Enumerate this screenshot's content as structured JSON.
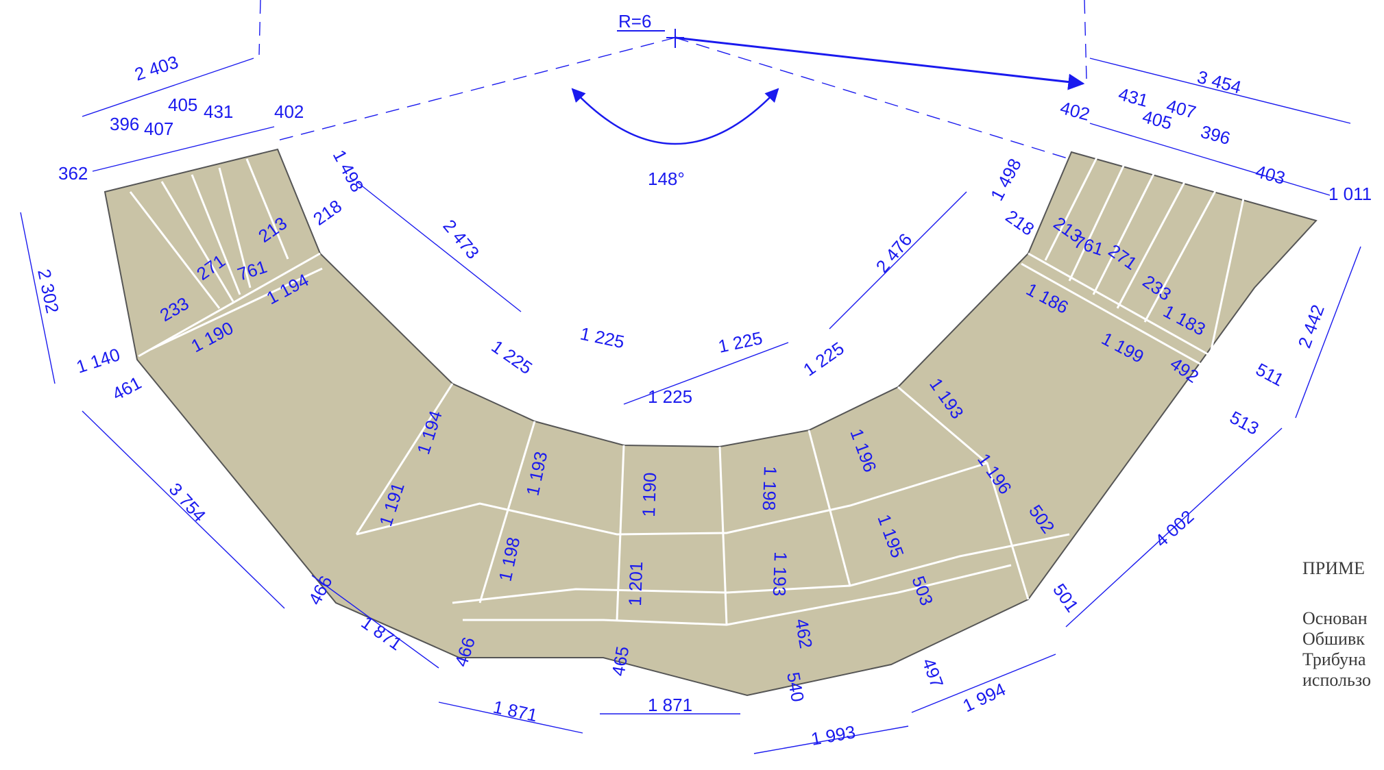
{
  "drawing": {
    "radius_label": "R=6",
    "angle_label": "148°",
    "colors": {
      "dimension": "#1a1aee",
      "panel_fill": "#c9c3a6",
      "panel_outline": "#555555",
      "panel_seam": "#ffffff"
    },
    "dimensions": [
      "2 403",
      "396",
      "407",
      "405",
      "431",
      "402",
      "362",
      "1 498",
      "218",
      "213",
      "761",
      "271",
      "233",
      "1 194",
      "1 190",
      "2 302",
      "1 140",
      "461",
      "2 473",
      "1 225",
      "1 225",
      "1 225",
      "1 225",
      "1 225",
      "2 476",
      "1 498",
      "218",
      "213",
      "761",
      "271",
      "233",
      "1 186",
      "1 183",
      "1 199",
      "492",
      "511",
      "513",
      "2 442",
      "3 454",
      "431",
      "405",
      "407",
      "396",
      "402",
      "403",
      "1 011",
      "3 754",
      "1 194",
      "1 191",
      "1 193",
      "1 198",
      "1 190",
      "1 201",
      "1 198",
      "1 193",
      "1 196",
      "1 195",
      "1 193",
      "1 196",
      "502",
      "503",
      "501",
      "462",
      "497",
      "466",
      "466",
      "465",
      "540",
      "1 871",
      "1 871",
      "1 871",
      "1 993",
      "1 994",
      "4 002"
    ]
  },
  "notes": {
    "title": "ПРИМЕ",
    "lines": [
      "Основан",
      "Обшивк",
      "Трибуна",
      "использо"
    ]
  }
}
